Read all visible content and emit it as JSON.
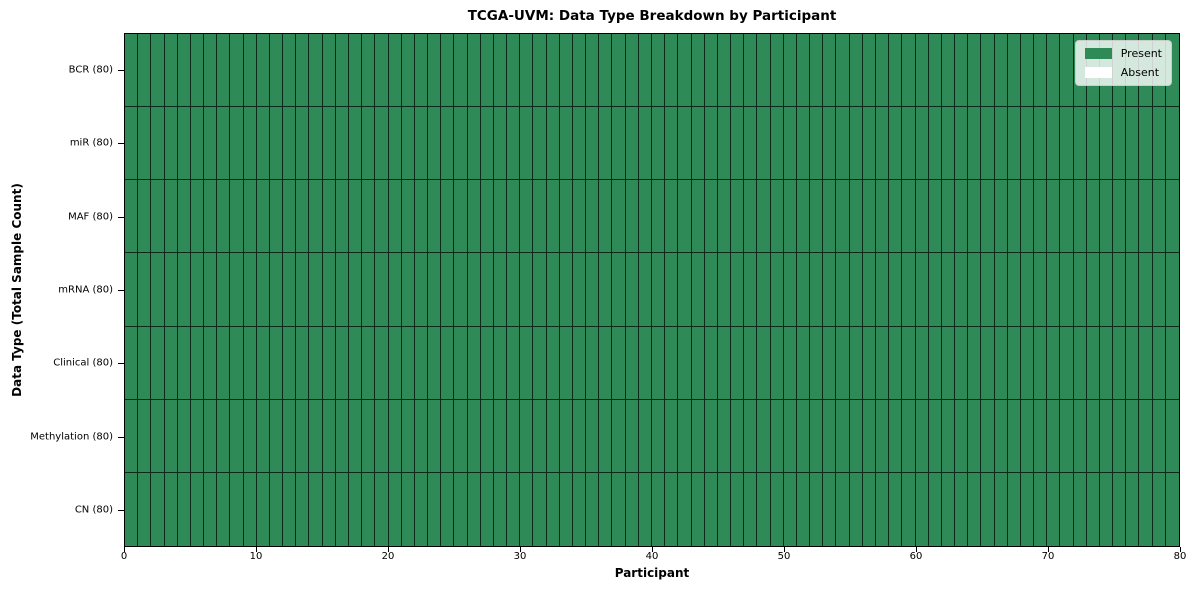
{
  "chart_data": {
    "type": "heatmap",
    "title": "TCGA-UVM: Data Type Breakdown by Participant",
    "xlabel": "Participant",
    "ylabel": "Data Type (Total Sample Count)",
    "x_range": [
      0,
      80
    ],
    "x_ticks": [
      0,
      10,
      20,
      30,
      40,
      50,
      60,
      70,
      80
    ],
    "n_participants": 80,
    "grid": true,
    "legend_position": "upper right",
    "rows": [
      {
        "label": "BCR (80)",
        "data_type": "BCR",
        "total_samples": 80,
        "present_count": 80
      },
      {
        "label": "miR (80)",
        "data_type": "miR",
        "total_samples": 80,
        "present_count": 80
      },
      {
        "label": "MAF (80)",
        "data_type": "MAF",
        "total_samples": 80,
        "present_count": 80
      },
      {
        "label": "mRNA (80)",
        "data_type": "mRNA",
        "total_samples": 80,
        "present_count": 80
      },
      {
        "label": "Clinical (80)",
        "data_type": "Clinical",
        "total_samples": 80,
        "present_count": 80
      },
      {
        "label": "Methylation (80)",
        "data_type": "Methylation",
        "total_samples": 80,
        "present_count": 80
      },
      {
        "label": "CN (80)",
        "data_type": "CN",
        "total_samples": 80,
        "present_count": 80
      }
    ],
    "legend": [
      {
        "label": "Present",
        "color": "#2e8b57"
      },
      {
        "label": "Absent",
        "color": "#ffffff"
      }
    ],
    "colors": {
      "present": "#2e8b57",
      "absent": "#ffffff",
      "gridline": "#1c1c1c"
    }
  }
}
